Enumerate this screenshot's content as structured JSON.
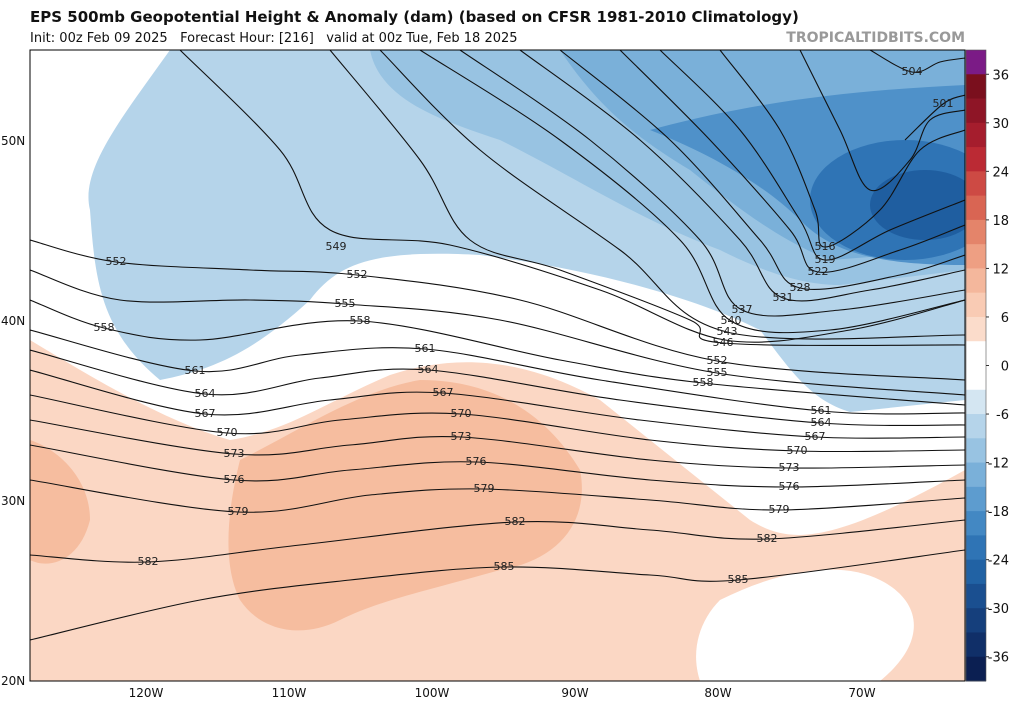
{
  "header": {
    "title": "EPS 500mb Geopotential Height & Anomaly (dam) (based on CFSR 1981-2010 Climatology)",
    "subtitle": "Init: 00z Feb 09 2025   Forecast Hour: [216]   valid at 00z Tue, Feb 18 2025",
    "site": "TROPICALTIDBITS.COM"
  },
  "map": {
    "lat_labels": [
      "50N",
      "40N",
      "30N",
      "20N"
    ],
    "lon_labels": [
      "120W",
      "110W",
      "100W",
      "90W",
      "80W",
      "70W"
    ],
    "contour_labels": [
      504,
      501,
      516,
      519,
      522,
      528,
      531,
      537,
      540,
      543,
      546,
      552,
      555,
      558,
      561,
      564,
      567,
      570,
      573,
      576,
      579,
      582,
      585,
      552,
      549,
      552,
      555,
      558,
      558,
      561,
      561,
      564,
      564,
      567,
      567,
      570,
      570,
      573,
      573,
      576,
      576,
      579,
      579,
      582,
      582,
      585
    ]
  },
  "colorbar": {
    "lim": [
      -39,
      39
    ],
    "ticks": [
      36,
      30,
      24,
      18,
      12,
      6,
      0,
      -6,
      -12,
      -18,
      -24,
      -30,
      -36
    ],
    "colors": [
      "#7b1b86",
      "#7a0f1d",
      "#8e1526",
      "#a51d2d",
      "#bb2a34",
      "#cd4a44",
      "#d96553",
      "#e4846a",
      "#ee9f83",
      "#f4b79c",
      "#f9cbb4",
      "#fbdccb",
      "#ffffff",
      "#ffffff",
      "#d4e6f2",
      "#b5d4ea",
      "#98c3e2",
      "#7ab0d9",
      "#5d9ccf",
      "#4388c3",
      "#2f74b5",
      "#2162a4",
      "#1a4f90",
      "#153f7c",
      "#102f68",
      "#0b1f52"
    ]
  }
}
